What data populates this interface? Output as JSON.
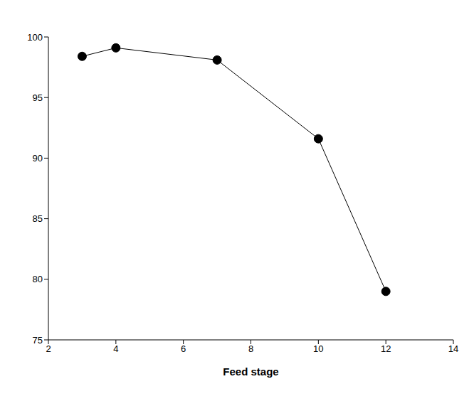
{
  "chart_data": {
    "type": "line",
    "x_label": "Feed stage",
    "x": [
      3,
      4,
      7,
      10,
      12
    ],
    "values": [
      98.4,
      99.1,
      98.1,
      91.6,
      79.0
    ],
    "xlim": [
      2,
      14
    ],
    "xticks": [
      2,
      4,
      6,
      8,
      10,
      12,
      14
    ],
    "ylim": [
      75,
      100
    ],
    "yticks": [
      75,
      80,
      85,
      90,
      95,
      100
    ],
    "color": "#000000",
    "marker": "circle",
    "grid": false
  }
}
